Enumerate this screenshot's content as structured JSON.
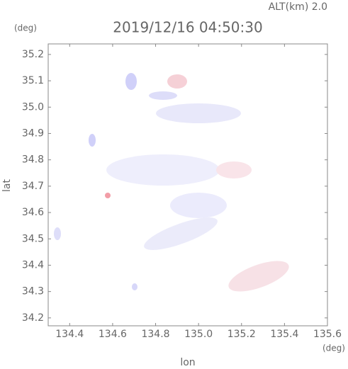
{
  "chart_data": {
    "type": "map",
    "altitude_label": "ALT(km) 2.0",
    "title": "2019/12/16 04:50:30",
    "y_unit": "(deg)",
    "x_unit": "(deg)",
    "y_label": "lat",
    "x_label": "lon",
    "xlim": [
      134.3,
      135.6
    ],
    "ylim": [
      34.17,
      35.24
    ],
    "xticks": [
      {
        "value": 134.4,
        "label": "134.4"
      },
      {
        "value": 134.6,
        "label": "134.6"
      },
      {
        "value": 134.8,
        "label": "134.8"
      },
      {
        "value": 135.0,
        "label": "135.0"
      },
      {
        "value": 135.2,
        "label": "135.2"
      },
      {
        "value": 135.4,
        "label": "135.4"
      },
      {
        "value": 135.6,
        "label": "135.6"
      }
    ],
    "yticks": [
      {
        "value": 34.2,
        "label": "34.2"
      },
      {
        "value": 34.3,
        "label": "34.3"
      },
      {
        "value": 34.4,
        "label": "34.4"
      },
      {
        "value": 34.5,
        "label": "34.5"
      },
      {
        "value": 34.6,
        "label": "34.6"
      },
      {
        "value": 34.7,
        "label": "34.7"
      },
      {
        "value": 34.8,
        "label": "34.8"
      },
      {
        "value": 34.9,
        "label": "34.9"
      },
      {
        "value": 35.0,
        "label": "35.0"
      },
      {
        "value": 35.1,
        "label": "35.1"
      },
      {
        "value": 35.2,
        "label": "35.2"
      }
    ]
  }
}
